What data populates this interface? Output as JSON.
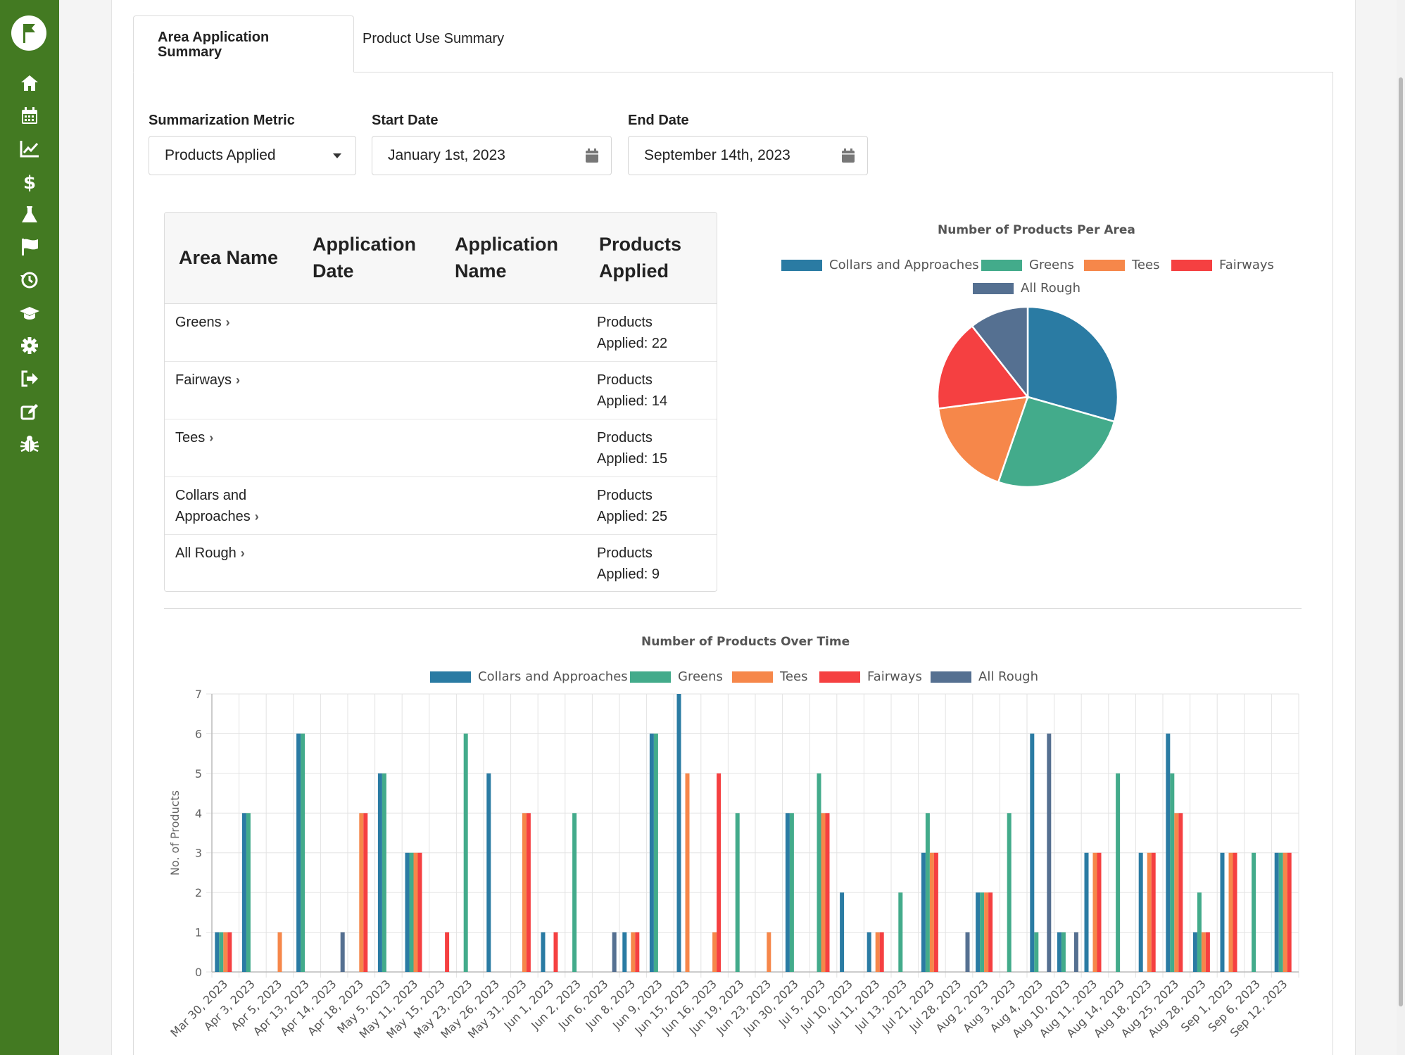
{
  "tabs": {
    "active_label": "Area Application Summary",
    "other_label": "Product Use Summary"
  },
  "filters": {
    "metric_label": "Summarization Metric",
    "metric_value": "Products Applied",
    "start_label": "Start Date",
    "start_value": "January 1st, 2023",
    "end_label": "End Date",
    "end_value": "September 14th, 2023"
  },
  "table": {
    "headers": [
      "Area Name",
      "Application Date",
      "Application Name",
      "Products Applied"
    ],
    "rows": [
      {
        "area": "Greens",
        "value": "Products Applied: 22"
      },
      {
        "area": "Fairways",
        "value": "Products Applied: 14"
      },
      {
        "area": "Tees",
        "value": "Products Applied: 15"
      },
      {
        "area": "Collars and Approaches",
        "value": "Products Applied: 25"
      },
      {
        "area": "All Rough",
        "value": "Products Applied: 9"
      }
    ]
  },
  "colors": {
    "sidebar": "#437a22",
    "collars": "#2a7ba3",
    "greens": "#43ab8b",
    "tees": "#f6874a",
    "fairways": "#f54041",
    "rough": "#557091"
  },
  "sidebar_icons": [
    "home-icon",
    "calendar-icon",
    "chart-line-icon",
    "dollar-icon",
    "flask-icon",
    "flag-icon",
    "history-icon",
    "graduation-cap-icon",
    "gear-icon",
    "sign-out-icon",
    "edit-icon",
    "bug-icon"
  ],
  "chart_data": [
    {
      "type": "pie",
      "title": "Number of Products Per Area",
      "labels": [
        "Collars and Approaches",
        "Greens",
        "Tees",
        "Fairways",
        "All Rough"
      ],
      "values": [
        25,
        22,
        15,
        14,
        9
      ]
    },
    {
      "type": "bar",
      "title": "Number of Products Over Time",
      "ylabel": "No. of Products",
      "ylim": [
        0,
        7
      ],
      "categories": [
        "Mar 30, 2023",
        "Apr 3, 2023",
        "Apr 5, 2023",
        "Apr 13, 2023",
        "Apr 14, 2023",
        "Apr 18, 2023",
        "May 5, 2023",
        "May 11, 2023",
        "May 15, 2023",
        "May 23, 2023",
        "May 26, 2023",
        "May 31, 2023",
        "Jun 1, 2023",
        "Jun 2, 2023",
        "Jun 6, 2023",
        "Jun 8, 2023",
        "Jun 9, 2023",
        "Jun 15, 2023",
        "Jun 16, 2023",
        "Jun 19, 2023",
        "Jun 23, 2023",
        "Jun 30, 2023",
        "Jul 5, 2023",
        "Jul 10, 2023",
        "Jul 11, 2023",
        "Jul 13, 2023",
        "Jul 21, 2023",
        "Jul 28, 2023",
        "Aug 2, 2023",
        "Aug 3, 2023",
        "Aug 4, 2023",
        "Aug 10, 2023",
        "Aug 11, 2023",
        "Aug 14, 2023",
        "Aug 18, 2023",
        "Aug 25, 2023",
        "Aug 28, 2023",
        "Sep 1, 2023",
        "Sep 6, 2023",
        "Sep 12, 2023"
      ],
      "series": [
        {
          "name": "Collars and Approaches",
          "values": [
            1,
            4,
            0,
            6,
            0,
            0,
            5,
            3,
            0,
            0,
            5,
            0,
            1,
            0,
            0,
            1,
            6,
            7,
            0,
            0,
            0,
            4,
            0,
            2,
            1,
            0,
            3,
            0,
            2,
            0,
            6,
            1,
            3,
            0,
            3,
            6,
            1,
            3,
            0,
            3
          ]
        },
        {
          "name": "Greens",
          "values": [
            1,
            4,
            0,
            6,
            0,
            0,
            5,
            3,
            0,
            6,
            0,
            0,
            0,
            4,
            0,
            0,
            6,
            0,
            0,
            4,
            0,
            4,
            5,
            0,
            0,
            2,
            4,
            0,
            2,
            4,
            1,
            1,
            0,
            5,
            0,
            5,
            2,
            0,
            3,
            3
          ]
        },
        {
          "name": "Tees",
          "values": [
            1,
            0,
            1,
            0,
            0,
            4,
            0,
            3,
            0,
            0,
            0,
            4,
            0,
            0,
            0,
            1,
            0,
            5,
            1,
            0,
            1,
            0,
            4,
            0,
            1,
            0,
            3,
            0,
            2,
            0,
            0,
            0,
            3,
            0,
            3,
            4,
            1,
            3,
            0,
            3
          ]
        },
        {
          "name": "Fairways",
          "values": [
            1,
            0,
            0,
            0,
            0,
            4,
            0,
            3,
            1,
            0,
            0,
            4,
            1,
            0,
            0,
            1,
            0,
            0,
            5,
            0,
            0,
            0,
            4,
            0,
            1,
            0,
            3,
            0,
            2,
            0,
            0,
            0,
            3,
            0,
            3,
            4,
            1,
            3,
            0,
            3
          ]
        },
        {
          "name": "All Rough",
          "values": [
            0,
            0,
            0,
            0,
            1,
            0,
            0,
            0,
            0,
            0,
            0,
            0,
            0,
            0,
            1,
            0,
            0,
            0,
            0,
            0,
            0,
            0,
            0,
            0,
            0,
            0,
            0,
            1,
            0,
            0,
            6,
            1,
            0,
            0,
            0,
            0,
            0,
            0,
            0,
            0
          ]
        }
      ]
    }
  ]
}
